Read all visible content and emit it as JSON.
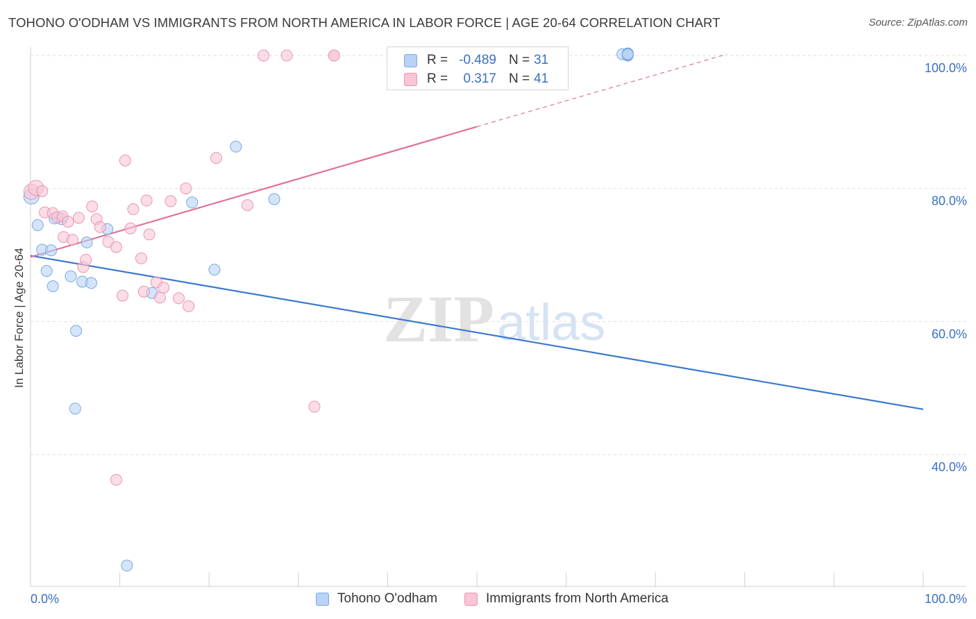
{
  "title": "TOHONO O'ODHAM VS IMMIGRANTS FROM NORTH AMERICA IN LABOR FORCE | AGE 20-64 CORRELATION CHART",
  "source": "Source: ZipAtlas.com",
  "colors": {
    "blue_fill": "#b8d3f5",
    "blue_stroke": "#7ba7e2",
    "blue_line": "#3a78d0",
    "pink_fill": "#f8c6d6",
    "pink_stroke": "#e896b2",
    "pink_line": "#e2709a",
    "tick_label": "#3a6fc4",
    "grid": "#dddddd"
  },
  "legend": {
    "rows": [
      {
        "label": "R =",
        "r": "-0.489",
        "n_label": "N =",
        "n": "31",
        "series": "blue"
      },
      {
        "label": "R =",
        "r": "0.317",
        "n_label": "N =",
        "n": "41",
        "series": "pink"
      }
    ]
  },
  "bottom_legend": {
    "items": [
      {
        "name": "Tohono O'odham",
        "series": "blue"
      },
      {
        "name": "Immigrants from North America",
        "series": "pink"
      }
    ]
  },
  "chart_data": {
    "type": "scatter",
    "ylabel": "In Labor Force | Age 20-64",
    "xlim": [
      0,
      100
    ],
    "ylim": [
      22,
      102
    ],
    "x_tick_labels": [
      {
        "value": 0,
        "label": "0.0%"
      },
      {
        "value": 100,
        "label": "100.0%"
      }
    ],
    "y_tick_labels": [
      {
        "value": 100,
        "label": "100.0%"
      },
      {
        "value": 80,
        "label": "80.0%"
      },
      {
        "value": 60,
        "label": "60.0%"
      },
      {
        "value": 40,
        "label": "40.0%"
      }
    ],
    "grid": true,
    "watermark": "ZIPatlas",
    "series": [
      {
        "name": "Tohono O'odham",
        "color": "blue",
        "points": [
          [
            0.1,
            78.8
          ],
          [
            0.8,
            74.5
          ],
          [
            1.3,
            70.8
          ],
          [
            1.8,
            67.6
          ],
          [
            2.3,
            70.7
          ],
          [
            2.5,
            65.3
          ],
          [
            2.7,
            75.5
          ],
          [
            3.5,
            75.4
          ],
          [
            4.5,
            66.8
          ],
          [
            5.1,
            58.6
          ],
          [
            5.0,
            46.9
          ],
          [
            5.8,
            66.0
          ],
          [
            6.3,
            71.9
          ],
          [
            6.8,
            65.8
          ],
          [
            8.6,
            73.9
          ],
          [
            10.8,
            23.3
          ],
          [
            13.6,
            64.3
          ],
          [
            18.1,
            77.9
          ],
          [
            20.6,
            67.8
          ],
          [
            23.0,
            86.3
          ],
          [
            27.3,
            78.4
          ],
          [
            66.3,
            100.2
          ],
          [
            66.9,
            100.2
          ],
          [
            66.9,
            100.1
          ],
          [
            66.9,
            100.2
          ],
          [
            66.9,
            100.3
          ],
          [
            66.9,
            100.0
          ],
          [
            66.9,
            100.3
          ],
          [
            66.9,
            100.2
          ],
          [
            66.9,
            100.1
          ],
          [
            66.9,
            100.2
          ]
        ]
      },
      {
        "name": "Immigrants from North America",
        "color": "pink",
        "points": [
          [
            0.1,
            79.5
          ],
          [
            0.6,
            80.1
          ],
          [
            1.3,
            79.6
          ],
          [
            1.6,
            76.4
          ],
          [
            2.5,
            76.3
          ],
          [
            3.0,
            75.7
          ],
          [
            3.6,
            75.8
          ],
          [
            3.7,
            72.7
          ],
          [
            4.2,
            75.0
          ],
          [
            4.7,
            72.3
          ],
          [
            5.4,
            75.6
          ],
          [
            5.9,
            68.2
          ],
          [
            6.2,
            69.3
          ],
          [
            6.9,
            77.3
          ],
          [
            7.4,
            75.4
          ],
          [
            7.8,
            74.2
          ],
          [
            8.7,
            72.0
          ],
          [
            9.6,
            36.2
          ],
          [
            9.6,
            71.2
          ],
          [
            10.3,
            63.9
          ],
          [
            10.6,
            84.2
          ],
          [
            11.2,
            74.0
          ],
          [
            11.5,
            76.9
          ],
          [
            12.4,
            69.5
          ],
          [
            12.7,
            64.5
          ],
          [
            13.0,
            78.2
          ],
          [
            13.3,
            73.1
          ],
          [
            14.1,
            65.9
          ],
          [
            14.5,
            63.6
          ],
          [
            14.9,
            65.1
          ],
          [
            15.7,
            78.1
          ],
          [
            16.6,
            63.5
          ],
          [
            17.4,
            80.0
          ],
          [
            17.7,
            62.3
          ],
          [
            20.8,
            84.6
          ],
          [
            24.3,
            77.5
          ],
          [
            26.1,
            100.0
          ],
          [
            28.7,
            100.0
          ],
          [
            31.8,
            47.2
          ],
          [
            34.0,
            100.0
          ],
          [
            34.0,
            100.0
          ]
        ]
      }
    ],
    "trend_lines": [
      {
        "series": "Tohono O'odham",
        "x": [
          0,
          100
        ],
        "y": [
          69.9,
          46.8
        ],
        "style": "solid"
      },
      {
        "series": "Immigrants from North America",
        "x": [
          0,
          50
        ],
        "y": [
          69.7,
          89.3
        ],
        "style": "solid"
      },
      {
        "series": "Immigrants from North America",
        "x": [
          50,
          78
        ],
        "y": [
          89.3,
          100.2
        ],
        "style": "dashed"
      }
    ]
  }
}
